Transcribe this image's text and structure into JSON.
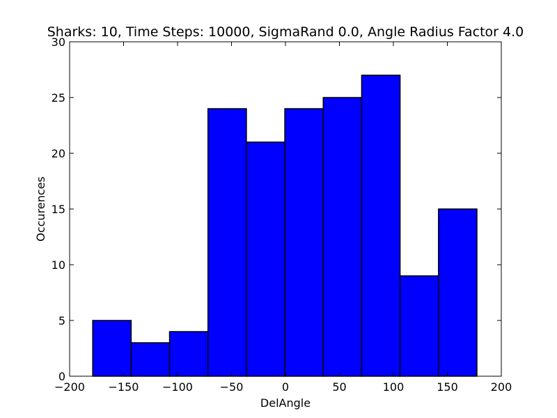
{
  "chart_data": {
    "type": "bar",
    "title": "Sharks: 10, Time Steps: 10000, SigmaRand 0.0, Angle Radius Factor 4.0",
    "xlabel": "DelAngle",
    "ylabel": "Occurences",
    "xlim": [
      -200,
      200
    ],
    "ylim": [
      0,
      30
    ],
    "xticks": [
      -200,
      -150,
      -100,
      -50,
      0,
      50,
      100,
      150,
      200
    ],
    "xtick_labels": [
      "−200",
      "−150",
      "−100",
      "−50",
      "0",
      "50",
      "100",
      "150",
      "200"
    ],
    "yticks": [
      0,
      5,
      10,
      15,
      20,
      25,
      30
    ],
    "ytick_labels": [
      "0",
      "5",
      "10",
      "15",
      "20",
      "25",
      "30"
    ],
    "bin_edges": [
      -178.6,
      -143.0,
      -107.4,
      -71.8,
      -36.2,
      -0.6,
      35.0,
      70.6,
      106.2,
      141.8,
      177.4
    ],
    "values": [
      5,
      3,
      4,
      24,
      21,
      24,
      25,
      27,
      9,
      15
    ],
    "bar_color": "#0000ff",
    "edge_color": "#000000",
    "grid": false
  }
}
